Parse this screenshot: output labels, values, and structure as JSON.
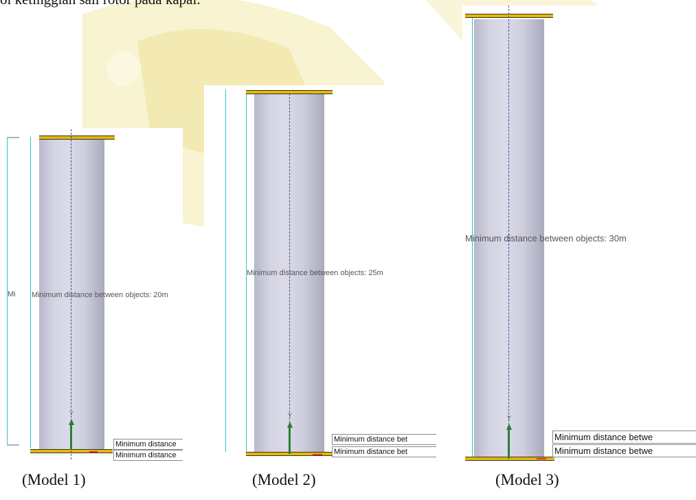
{
  "header_text": "ol ketinggian sail rotor pada kapal.",
  "models": [
    {
      "caption": "(Model 1)",
      "distance_label": "Minimum distance between objects: 20m",
      "side_label": "Mi",
      "md_label_1": "Minimum distance",
      "md_label_2": "Minimum distance",
      "axis_label": "Y"
    },
    {
      "caption": "(Model 2)",
      "distance_label": "Minimum distance between objects: 25m",
      "side_label": "",
      "md_label_1": "Minimum distance bet",
      "md_label_2": "Minimum distance bet",
      "axis_label": "Y"
    },
    {
      "caption": "(Model 3)",
      "distance_label": "Minimum distance between objects: 30m",
      "side_label": "",
      "md_label_1": "Minimum distance betwe",
      "md_label_2": "Minimum distance betwe",
      "axis_label": "Y"
    }
  ],
  "colors": {
    "cylinder": "#d0d0e0",
    "plate": "#e6b800",
    "cyan": "#2bc4c4",
    "axis_green": "#2e7d32",
    "watermark": "#f3e9a8"
  }
}
